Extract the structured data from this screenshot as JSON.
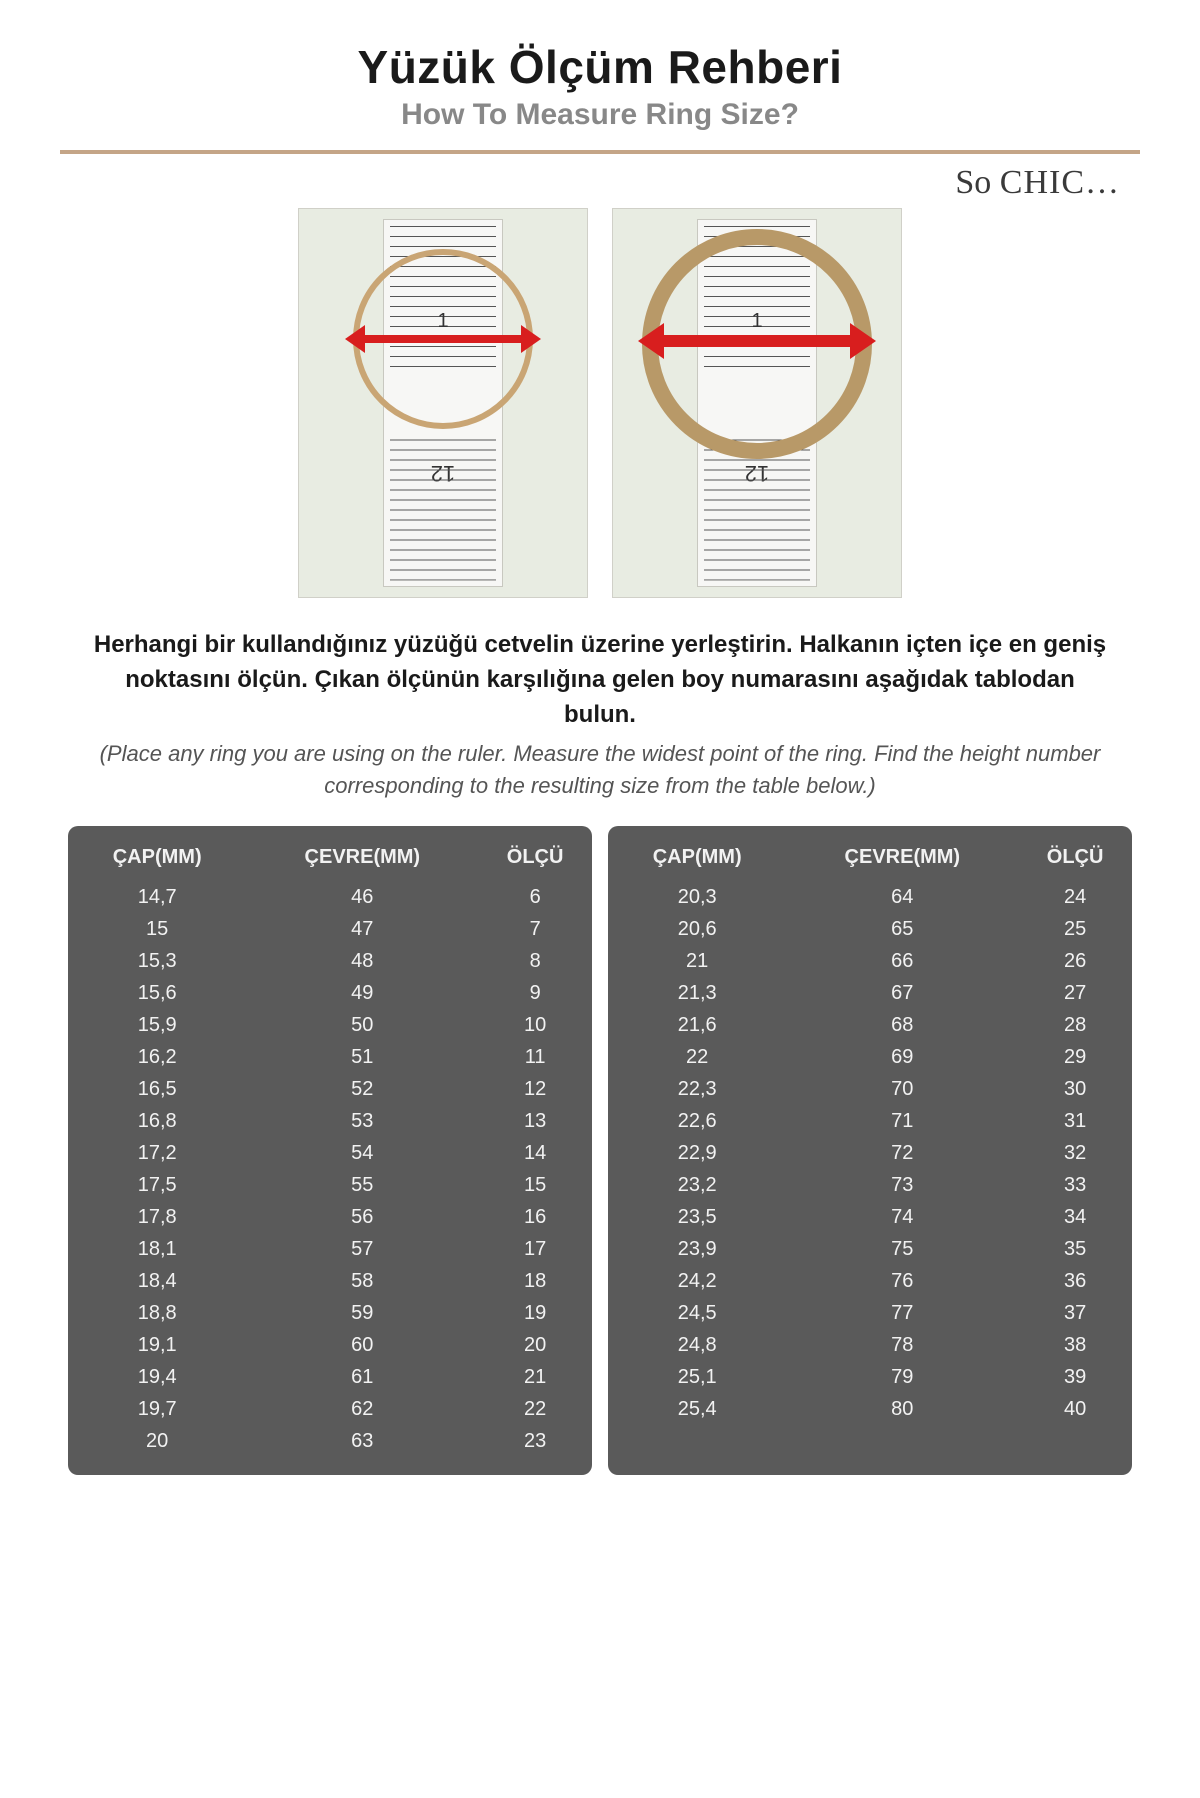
{
  "header": {
    "title": "Yüzük Ölçüm Rehberi",
    "subtitle": "How To Measure Ring Size?",
    "brand_so": "So",
    "brand_chic": "CHIC…",
    "divider_color": "#c4a587"
  },
  "photos": {
    "ruler_top_mark_1": "1",
    "ruler_bottom_mark": "12",
    "ring_color": "#c9a574",
    "arrow_color": "#d81e1e",
    "bg_color": "#e8ece2"
  },
  "instructions": {
    "primary": "Herhangi bir kullandığınız yüzüğü cetvelin üzerine yerleştirin. Halkanın içten içe en geniş noktasını ölçün. Çıkan ölçünün karşılığına gelen boy numarasını aşağıdak tablodan bulun.",
    "secondary": "(Place any ring you are using on the ruler. Measure the widest point of the ring. Find the height number corresponding to the resulting size from the table below.)"
  },
  "table": {
    "bg_color": "#5a5a5a",
    "text_color": "#f2f2f2",
    "headers": {
      "cap": "ÇAP(MM)",
      "cevre": "ÇEVRE(MM)",
      "olcu": "ÖLÇÜ"
    },
    "left": [
      {
        "cap": "14,7",
        "cevre": "46",
        "olcu": "6"
      },
      {
        "cap": "15",
        "cevre": "47",
        "olcu": "7"
      },
      {
        "cap": "15,3",
        "cevre": "48",
        "olcu": "8"
      },
      {
        "cap": "15,6",
        "cevre": "49",
        "olcu": "9"
      },
      {
        "cap": "15,9",
        "cevre": "50",
        "olcu": "10"
      },
      {
        "cap": "16,2",
        "cevre": "51",
        "olcu": "11"
      },
      {
        "cap": "16,5",
        "cevre": "52",
        "olcu": "12"
      },
      {
        "cap": "16,8",
        "cevre": "53",
        "olcu": "13"
      },
      {
        "cap": "17,2",
        "cevre": "54",
        "olcu": "14"
      },
      {
        "cap": "17,5",
        "cevre": "55",
        "olcu": "15"
      },
      {
        "cap": "17,8",
        "cevre": "56",
        "olcu": "16"
      },
      {
        "cap": "18,1",
        "cevre": "57",
        "olcu": "17"
      },
      {
        "cap": "18,4",
        "cevre": "58",
        "olcu": "18"
      },
      {
        "cap": "18,8",
        "cevre": "59",
        "olcu": "19"
      },
      {
        "cap": "19,1",
        "cevre": "60",
        "olcu": "20"
      },
      {
        "cap": "19,4",
        "cevre": "61",
        "olcu": "21"
      },
      {
        "cap": "19,7",
        "cevre": "62",
        "olcu": "22"
      },
      {
        "cap": "20",
        "cevre": "63",
        "olcu": "23"
      }
    ],
    "right": [
      {
        "cap": "20,3",
        "cevre": "64",
        "olcu": "24"
      },
      {
        "cap": "20,6",
        "cevre": "65",
        "olcu": "25"
      },
      {
        "cap": "21",
        "cevre": "66",
        "olcu": "26"
      },
      {
        "cap": "21,3",
        "cevre": "67",
        "olcu": "27"
      },
      {
        "cap": "21,6",
        "cevre": "68",
        "olcu": "28"
      },
      {
        "cap": "22",
        "cevre": "69",
        "olcu": "29"
      },
      {
        "cap": "22,3",
        "cevre": "70",
        "olcu": "30"
      },
      {
        "cap": "22,6",
        "cevre": "71",
        "olcu": "31"
      },
      {
        "cap": "22,9",
        "cevre": "72",
        "olcu": "32"
      },
      {
        "cap": "23,2",
        "cevre": "73",
        "olcu": "33"
      },
      {
        "cap": "23,5",
        "cevre": "74",
        "olcu": "34"
      },
      {
        "cap": "23,9",
        "cevre": "75",
        "olcu": "35"
      },
      {
        "cap": "24,2",
        "cevre": "76",
        "olcu": "36"
      },
      {
        "cap": "24,5",
        "cevre": "77",
        "olcu": "37"
      },
      {
        "cap": "24,8",
        "cevre": "78",
        "olcu": "38"
      },
      {
        "cap": "25,1",
        "cevre": "79",
        "olcu": "39"
      },
      {
        "cap": "25,4",
        "cevre": "80",
        "olcu": "40"
      }
    ]
  }
}
